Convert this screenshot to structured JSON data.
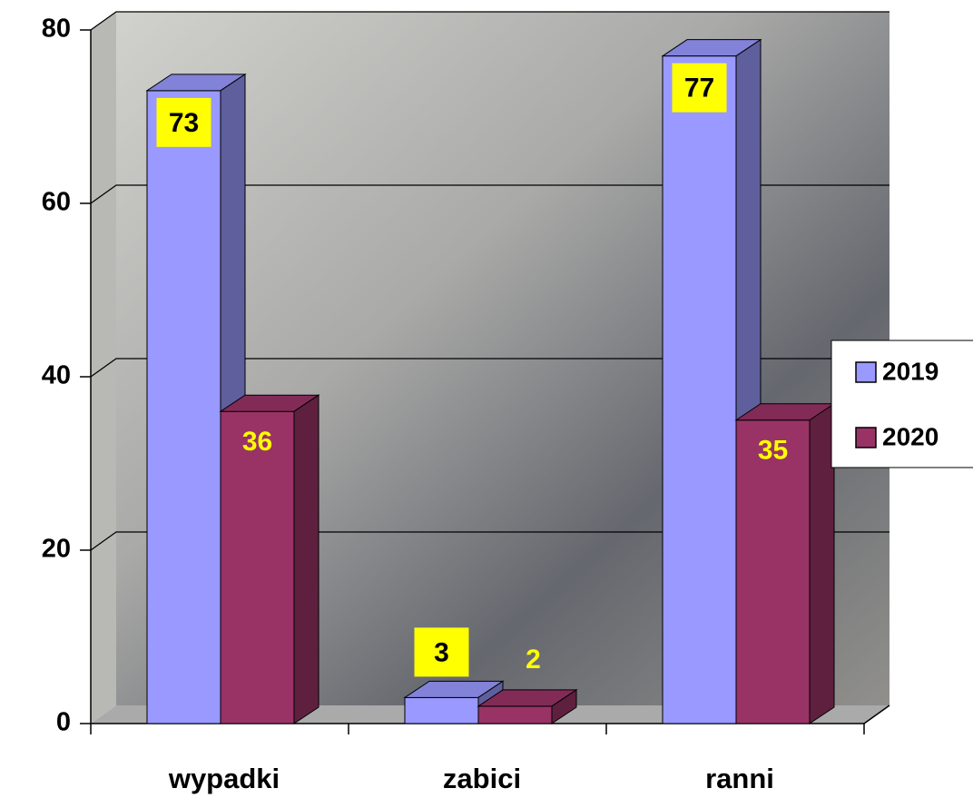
{
  "chart_data": {
    "type": "bar3d",
    "categories": [
      "wypadki",
      "zabici",
      "ranni"
    ],
    "series": [
      {
        "name": "2019",
        "color": "#9999ff",
        "values": [
          73,
          3,
          77
        ]
      },
      {
        "name": "2020",
        "color": "#993366",
        "values": [
          36,
          2,
          35
        ]
      }
    ],
    "ylim": [
      0,
      80
    ],
    "yticks": [
      0,
      20,
      40,
      60,
      80
    ],
    "grid": true,
    "legend": "right"
  }
}
